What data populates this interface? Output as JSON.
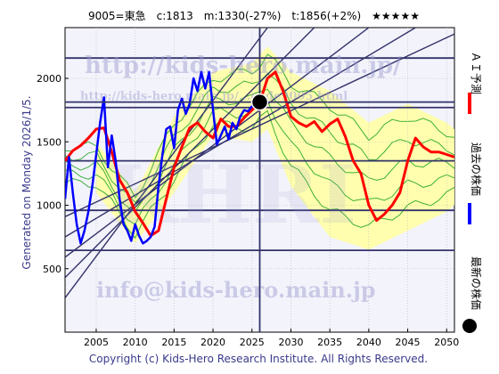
{
  "header": {
    "title": "9005=東急　c:1813　m:1330(-27%)　t:1856(+2%)　★★★★★"
  },
  "watermarks": {
    "url": "http://kids-hero.main.jp/",
    "subpage": "http://kids-hero.main.jp/...code9005.html",
    "email": "info@kids-hero.main.jp",
    "big": "KHRI"
  },
  "side_labels": {
    "generated": "Generated on Monday 2026/1/5.",
    "copyright": "Copyright (c) Kids-Hero Research Institute. All Rights Reserved.",
    "legend_ai": "ＡＩ予測",
    "legend_past": "過去の株価",
    "legend_latest": "最新の株価"
  },
  "colors": {
    "ai_forecast": "#ff0000",
    "past_price": "#0000ff",
    "latest_marker": "#000000",
    "band_fill": "#ffffa0",
    "band_lines": "#1fa31f",
    "trend_lines": "#33336b",
    "plot_bg": "#f3f3fb"
  },
  "chart_data": {
    "type": "line",
    "title": "9005=東急　c:1813　m:1330(-27%)　t:1856(+2%)　★★★★★",
    "xlabel": "",
    "ylabel": "",
    "xlim": [
      2001,
      2051
    ],
    "ylim": [
      0,
      2400
    ],
    "xticks": [
      2005,
      2010,
      2015,
      2020,
      2025,
      2030,
      2035,
      2040,
      2045,
      2050
    ],
    "yticks": [
      500,
      1000,
      1500,
      2000
    ],
    "grid": true,
    "current": {
      "year": 2026,
      "price": 1813
    },
    "horizontal_levels": [
      645,
      960,
      1350,
      1770,
      2160
    ],
    "channel_lines": [
      {
        "x": [
          2001,
          2027
        ],
        "y": [
          270,
          2400
        ]
      },
      {
        "x": [
          2001,
          2033
        ],
        "y": [
          430,
          2400
        ]
      },
      {
        "x": [
          2001,
          2040
        ],
        "y": [
          590,
          2400
        ]
      },
      {
        "x": [
          2001,
          2046
        ],
        "y": [
          750,
          2400
        ]
      },
      {
        "x": [
          2001,
          2051
        ],
        "y": [
          910,
          2350
        ]
      }
    ],
    "series": [
      {
        "name": "ＡＩ予測",
        "x": [
          2001,
          2002,
          2003,
          2004,
          2005,
          2006,
          2007,
          2008,
          2009,
          2010,
          2011,
          2012,
          2013,
          2014,
          2015,
          2016,
          2017,
          2018,
          2019,
          2020,
          2021,
          2022,
          2023,
          2024,
          2025,
          2026,
          2027,
          2028,
          2029,
          2030,
          2031,
          2032,
          2033,
          2034,
          2035,
          2036,
          2037,
          2038,
          2039,
          2040,
          2041,
          2042,
          2043,
          2044,
          2045,
          2046,
          2047,
          2048,
          2049,
          2050,
          2051
        ],
        "y": [
          1350,
          1430,
          1470,
          1530,
          1600,
          1610,
          1420,
          1200,
          1100,
          950,
          860,
          760,
          800,
          1050,
          1300,
          1460,
          1610,
          1650,
          1580,
          1530,
          1680,
          1620,
          1620,
          1690,
          1750,
          1810,
          2000,
          2050,
          1900,
          1700,
          1650,
          1620,
          1660,
          1580,
          1640,
          1680,
          1540,
          1350,
          1250,
          1000,
          880,
          930,
          1000,
          1100,
          1350,
          1530,
          1460,
          1420,
          1420,
          1400,
          1380
        ]
      },
      {
        "name": "過去の株価",
        "x": [
          2001,
          2001.5,
          2002,
          2002.5,
          2003,
          2003.5,
          2004,
          2004.5,
          2005,
          2005.5,
          2006,
          2006.5,
          2007,
          2007.5,
          2008,
          2008.5,
          2009,
          2009.5,
          2010,
          2010.5,
          2011,
          2011.5,
          2012,
          2012.5,
          2013,
          2013.5,
          2014,
          2014.5,
          2015,
          2015.5,
          2016,
          2016.5,
          2017,
          2017.5,
          2018,
          2018.5,
          2019,
          2019.5,
          2020,
          2020.5,
          2021,
          2021.5,
          2022,
          2022.5,
          2023,
          2023.5,
          2024,
          2024.5,
          2025,
          2025.5,
          2026
        ],
        "y": [
          1050,
          1380,
          1100,
          850,
          700,
          800,
          950,
          1150,
          1400,
          1650,
          1850,
          1300,
          1550,
          1350,
          1050,
          850,
          800,
          720,
          850,
          760,
          700,
          720,
          750,
          830,
          1150,
          1400,
          1600,
          1620,
          1450,
          1750,
          1840,
          1720,
          1800,
          2000,
          1900,
          2050,
          1920,
          2050,
          1750,
          1480,
          1550,
          1620,
          1520,
          1650,
          1600,
          1700,
          1750,
          1740,
          1780,
          1790,
          1813
        ]
      }
    ],
    "forecast_band": {
      "x": [
        2005,
        2010,
        2015,
        2020,
        2025,
        2027,
        2030,
        2035,
        2040,
        2045,
        2050,
        2051
      ],
      "upper": [
        1500,
        1100,
        1700,
        2050,
        2120,
        2250,
        2050,
        1900,
        1650,
        1800,
        1650,
        1600
      ],
      "lower": [
        1100,
        700,
        1100,
        1550,
        1500,
        1600,
        1150,
        750,
        650,
        800,
        950,
        1000
      ]
    }
  }
}
